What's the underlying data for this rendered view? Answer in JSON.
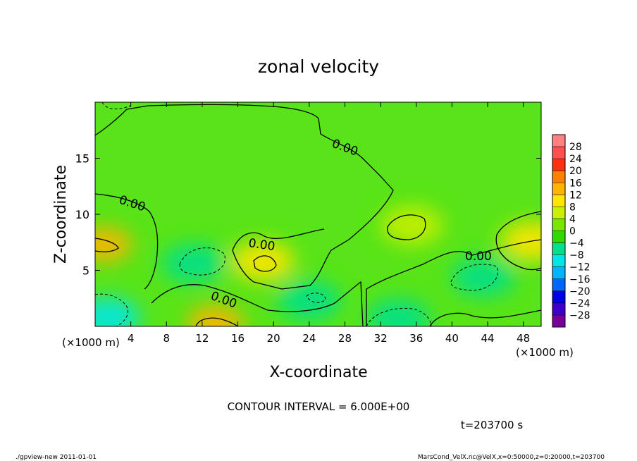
{
  "chart_data": {
    "type": "heatmap",
    "title": "zonal velocity",
    "xlabel": "X-coordinate",
    "ylabel": "Z-coordinate",
    "x_unit": "(×1000 m)",
    "xlim": [
      0,
      50
    ],
    "ylim": [
      0,
      20
    ],
    "x_ticks": [
      4,
      8,
      12,
      16,
      20,
      24,
      28,
      32,
      36,
      40,
      44,
      48
    ],
    "y_ticks": [
      5,
      10,
      15
    ],
    "colorbar": {
      "levels": [
        28,
        24,
        20,
        16,
        12,
        8,
        4,
        0,
        -4,
        -8,
        -12,
        -16,
        -20,
        -24,
        -28
      ],
      "colors": [
        "#ff8080",
        "#ff5050",
        "#ff3010",
        "#ff8000",
        "#ffb400",
        "#ffe600",
        "#c8f000",
        "#78e600",
        "#30d800",
        "#00e08c",
        "#00e6e6",
        "#00b4ff",
        "#0064ff",
        "#0000e6",
        "#3c00c8",
        "#780096"
      ]
    },
    "contour_label": "0.00",
    "field_features": [
      {
        "x": 1.0,
        "z": 7.3,
        "value": 14
      },
      {
        "x": 13.5,
        "z": 0.3,
        "value": 14
      },
      {
        "x": 49.0,
        "z": 7.6,
        "value": 10
      },
      {
        "x": 18.8,
        "z": 5.8,
        "value": 8
      },
      {
        "x": 35.5,
        "z": 9.0,
        "value": 6
      },
      {
        "x": 11.0,
        "z": 5.6,
        "value": -8
      },
      {
        "x": 43.5,
        "z": 4.4,
        "value": -8
      },
      {
        "x": 1.5,
        "z": 0.8,
        "value": -10
      },
      {
        "x": 34.0,
        "z": 0.7,
        "value": -6
      },
      {
        "x": 24.0,
        "z": 2.3,
        "value": -6
      }
    ]
  },
  "annotations": {
    "contour_interval": "CONTOUR INTERVAL = 6.000E+00",
    "time": "t=203700 s",
    "footer_left": "./gpview-new  2011-01-01",
    "footer_right": "MarsCond_VelX.nc@VelX,x=0:50000,z=0:20000,t=203700"
  }
}
